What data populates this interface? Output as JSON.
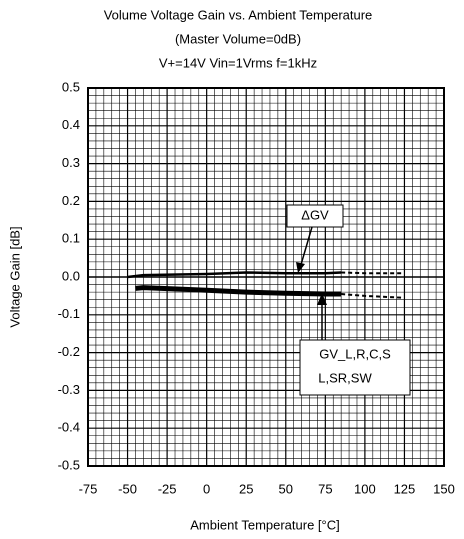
{
  "chart_data": {
    "type": "line",
    "title": [
      "Volume  Voltage Gain vs. Ambient Temperature",
      "(Master Volume=0dB)",
      "V+=14V Vin=1Vrms f=1kHz"
    ],
    "xlabel": "Ambient Temperature [°C]",
    "ylabel": "Voltage Gain [dB]",
    "xlim": [
      -75,
      150
    ],
    "xticks": [
      -75,
      -50,
      -25,
      0,
      25,
      50,
      75,
      100,
      125,
      150
    ],
    "ylim": [
      -0.5,
      0.5
    ],
    "yticks": [
      {
        "value": -0.5,
        "label": "-0.5"
      },
      {
        "value": -0.4,
        "label": "-0.4"
      },
      {
        "value": -0.3,
        "label": "-0.3"
      },
      {
        "value": -0.2,
        "label": "-0.2"
      },
      {
        "value": -0.1,
        "label": "-0.1"
      },
      {
        "value": 0,
        "label": "0.0"
      },
      {
        "value": 0.1,
        "label": "0.1"
      },
      {
        "value": 0.2,
        "label": "0.2"
      },
      {
        "value": 0.3,
        "label": "0.3"
      },
      {
        "value": 0.4,
        "label": "0.4"
      },
      {
        "value": 0.5,
        "label": "0.5"
      }
    ],
    "grid": true,
    "series": [
      {
        "label_lines": [
          "ΔGV"
        ],
        "color": "#000",
        "width": 2.5,
        "dashed_from": 85,
        "x": [
          -50,
          -40,
          0,
          25,
          50,
          75,
          85,
          100,
          125
        ],
        "values": [
          0.0,
          0.005,
          0.008,
          0.012,
          0.01,
          0.01,
          0.012,
          0.01,
          0.01
        ]
      },
      {
        "label_lines": [
          "GV_L,R,C,S",
          "L,SR,SW"
        ],
        "color": "#000",
        "width": 5,
        "dashed_from": 85,
        "x": [
          -45,
          -40,
          0,
          25,
          50,
          75,
          85,
          100,
          125
        ],
        "values": [
          -0.03,
          -0.028,
          -0.035,
          -0.04,
          -0.043,
          -0.045,
          -0.045,
          -0.05,
          -0.055
        ]
      }
    ]
  }
}
